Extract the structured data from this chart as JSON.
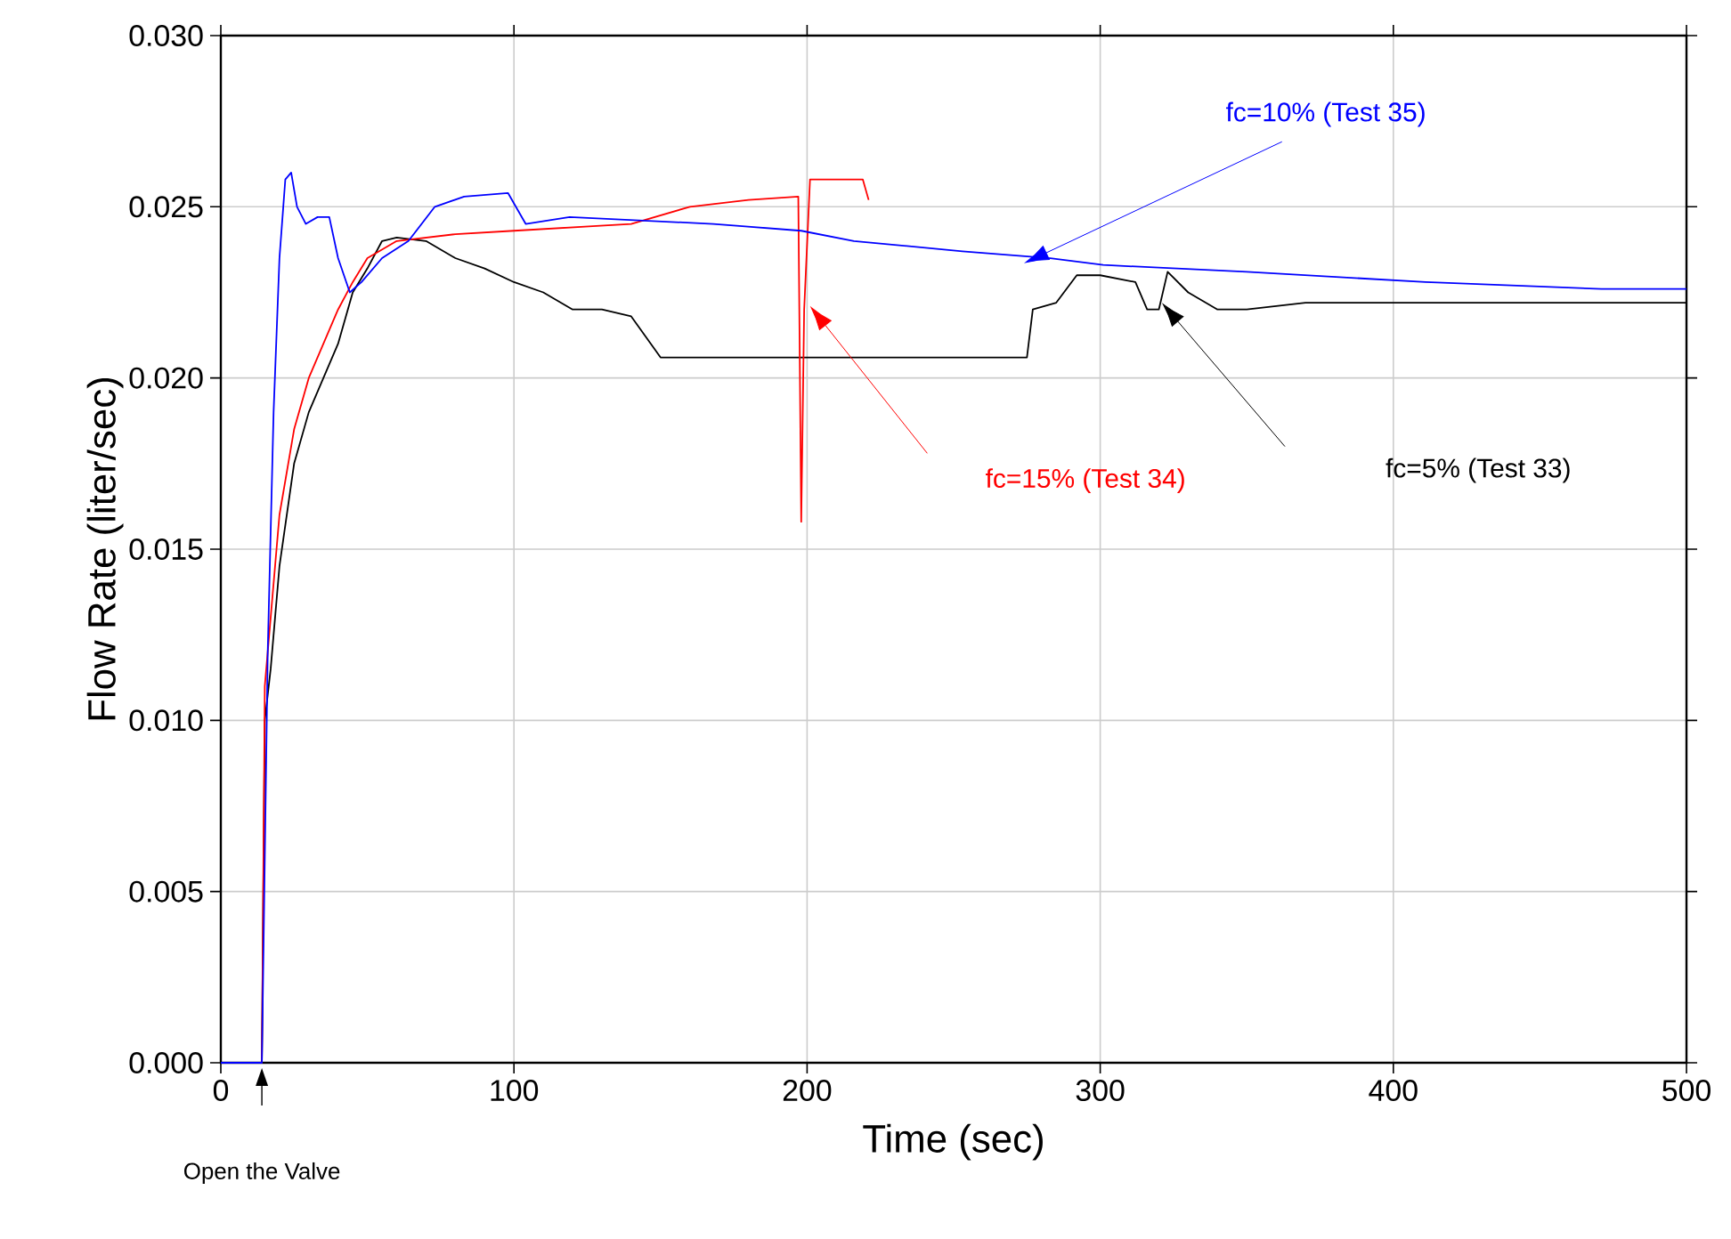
{
  "chart_data": {
    "type": "line",
    "xlabel": "Time (sec)",
    "ylabel": "Flow Rate (liter/sec)",
    "xlim": [
      0,
      500
    ],
    "xticks": [
      0,
      100,
      200,
      300,
      400,
      500
    ],
    "ylim": [
      0,
      0.03
    ],
    "yticks": [
      {
        "value": 0,
        "label": "0.000"
      },
      {
        "value": 0.005,
        "label": "0.005"
      },
      {
        "value": 0.01,
        "label": "0.010"
      },
      {
        "value": 0.015,
        "label": "0.015"
      },
      {
        "value": 0.02,
        "label": "0.020"
      },
      {
        "value": 0.025,
        "label": "0.025"
      },
      {
        "value": 0.03,
        "label": "0.030"
      }
    ],
    "grid": true,
    "series": [
      {
        "name": "fc=5%   (Test 33)",
        "color": "#000000",
        "x": [
          0,
          14,
          15,
          17,
          20,
          25,
          30,
          35,
          40,
          45,
          50,
          55,
          60,
          70,
          80,
          90,
          100,
          110,
          120,
          130,
          140,
          150,
          160,
          180,
          200,
          220,
          240,
          260,
          275,
          277,
          285,
          292,
          300,
          312,
          316,
          320,
          323,
          330,
          340,
          350,
          370,
          400,
          430,
          460,
          500
        ],
        "values": [
          0,
          0,
          0.01,
          0.0115,
          0.0145,
          0.0175,
          0.019,
          0.02,
          0.021,
          0.0225,
          0.0232,
          0.024,
          0.0241,
          0.024,
          0.0235,
          0.0232,
          0.0228,
          0.0225,
          0.022,
          0.022,
          0.0218,
          0.0206,
          0.0206,
          0.0206,
          0.0206,
          0.0206,
          0.0206,
          0.0206,
          0.0206,
          0.022,
          0.0222,
          0.023,
          0.023,
          0.0228,
          0.022,
          0.022,
          0.0231,
          0.0225,
          0.022,
          0.022,
          0.0222,
          0.0222,
          0.0222,
          0.0222,
          0.0222
        ]
      },
      {
        "name": "fc=15% (Test 34)",
        "color": "#ff0000",
        "x": [
          0,
          14,
          15,
          17,
          20,
          25,
          30,
          35,
          40,
          45,
          50,
          60,
          80,
          100,
          140,
          160,
          180,
          197,
          198,
          199,
          201,
          210,
          219,
          221
        ],
        "values": [
          0,
          0,
          0.011,
          0.013,
          0.016,
          0.0185,
          0.02,
          0.021,
          0.022,
          0.0228,
          0.0235,
          0.024,
          0.0242,
          0.0243,
          0.0245,
          0.025,
          0.0252,
          0.0253,
          0.0158,
          0.022,
          0.0258,
          0.0258,
          0.0258,
          0.0252
        ]
      },
      {
        "name": "fc=10% (Test 35)",
        "color": "#0000ff",
        "x": [
          0,
          14,
          16,
          18,
          20,
          22,
          24,
          26,
          29,
          33,
          37,
          40,
          44,
          48,
          55,
          64,
          73,
          83,
          98,
          104,
          119,
          168,
          198,
          216,
          253,
          283,
          301,
          350,
          411,
          471,
          500
        ],
        "values": [
          0,
          0,
          0.012,
          0.019,
          0.0235,
          0.0258,
          0.026,
          0.025,
          0.0245,
          0.0247,
          0.0247,
          0.0235,
          0.0225,
          0.0228,
          0.0235,
          0.024,
          0.025,
          0.0253,
          0.0254,
          0.0245,
          0.0247,
          0.0245,
          0.0243,
          0.024,
          0.0237,
          0.0235,
          0.0233,
          0.0231,
          0.0228,
          0.0226,
          0.0226
        ]
      }
    ],
    "annotations": [
      "Open the Valve"
    ]
  }
}
